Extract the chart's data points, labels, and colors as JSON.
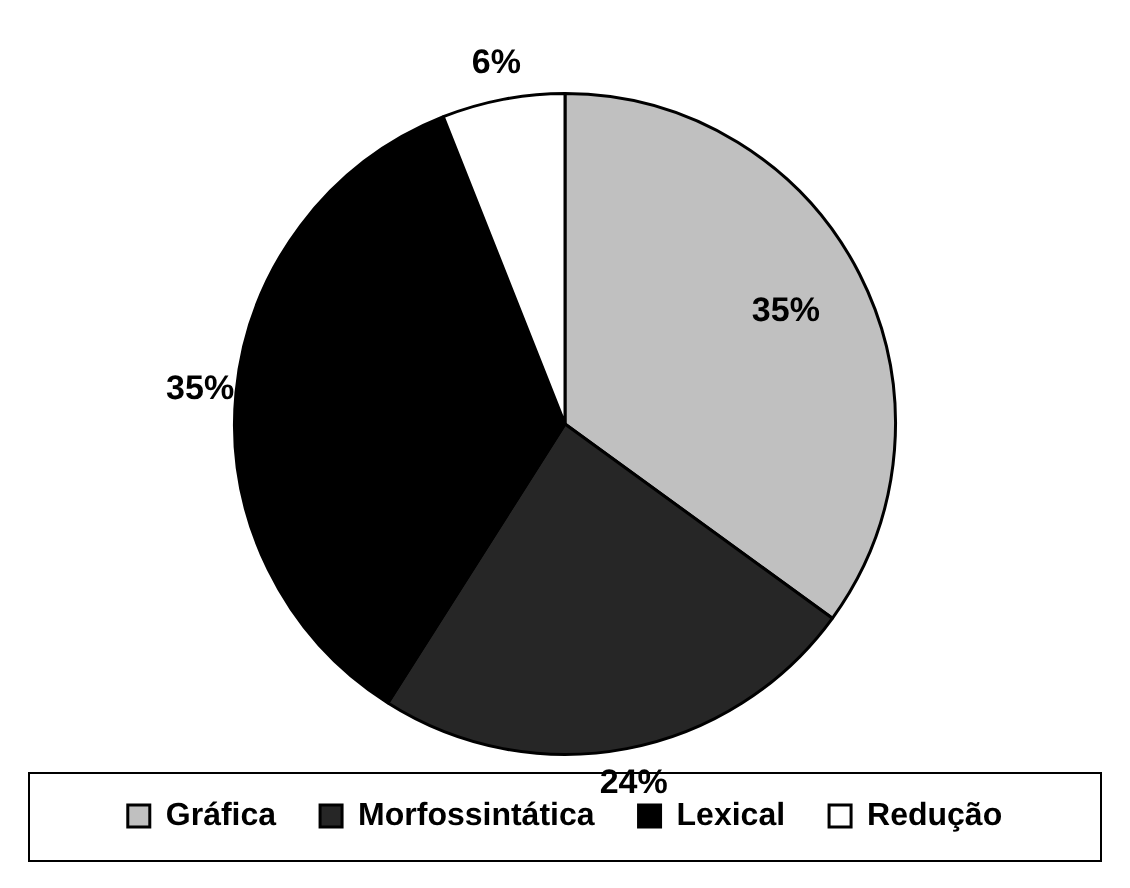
{
  "chart_data": {
    "type": "pie",
    "categories": [
      "Gráfica",
      "Morfossintática",
      "Lexical",
      "Redução"
    ],
    "values": [
      35,
      24,
      35,
      6
    ],
    "colors": [
      "#c0c0c0",
      "#262626",
      "#000000",
      "#ffffff"
    ],
    "value_labels": [
      "35%",
      "24%",
      "35%",
      "6%"
    ],
    "legend": "bottom"
  }
}
